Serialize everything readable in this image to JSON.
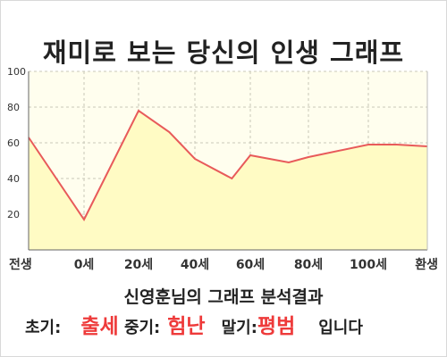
{
  "page": {
    "title": "재미로 보는 당신의 인생 그래프",
    "result_title": "신영훈님의 그래프 분석결과"
  },
  "summary": {
    "early_label": "초기:",
    "early_value": "출세",
    "middle_label": "중기:",
    "middle_value": "험난",
    "late_label": "말기:",
    "late_value": "평범",
    "suffix": "입니다"
  },
  "colors": {
    "line": "#e85a5a",
    "fill": "#fffbc4",
    "plot_bg": "#fffeee",
    "grid": "#c8c8b8",
    "value_highlight": "#ee3a3a"
  },
  "chart_data": {
    "type": "area",
    "title": "",
    "xlabel": "",
    "ylabel": "",
    "ylim": [
      0,
      100
    ],
    "y_ticks": [
      20,
      40,
      60,
      80,
      100
    ],
    "x_tick_labels": [
      "전생",
      "0세",
      "20세",
      "40세",
      "60세",
      "80세",
      "100세",
      "환생"
    ],
    "grid": true,
    "x": [
      "전생",
      "0세",
      "20세",
      "30세",
      "40세",
      "52세",
      "60세",
      "72세",
      "80세",
      "100세",
      "110세",
      "환생"
    ],
    "values": [
      63,
      17,
      78,
      66,
      51,
      40,
      53,
      49,
      52,
      59,
      59,
      58
    ]
  }
}
